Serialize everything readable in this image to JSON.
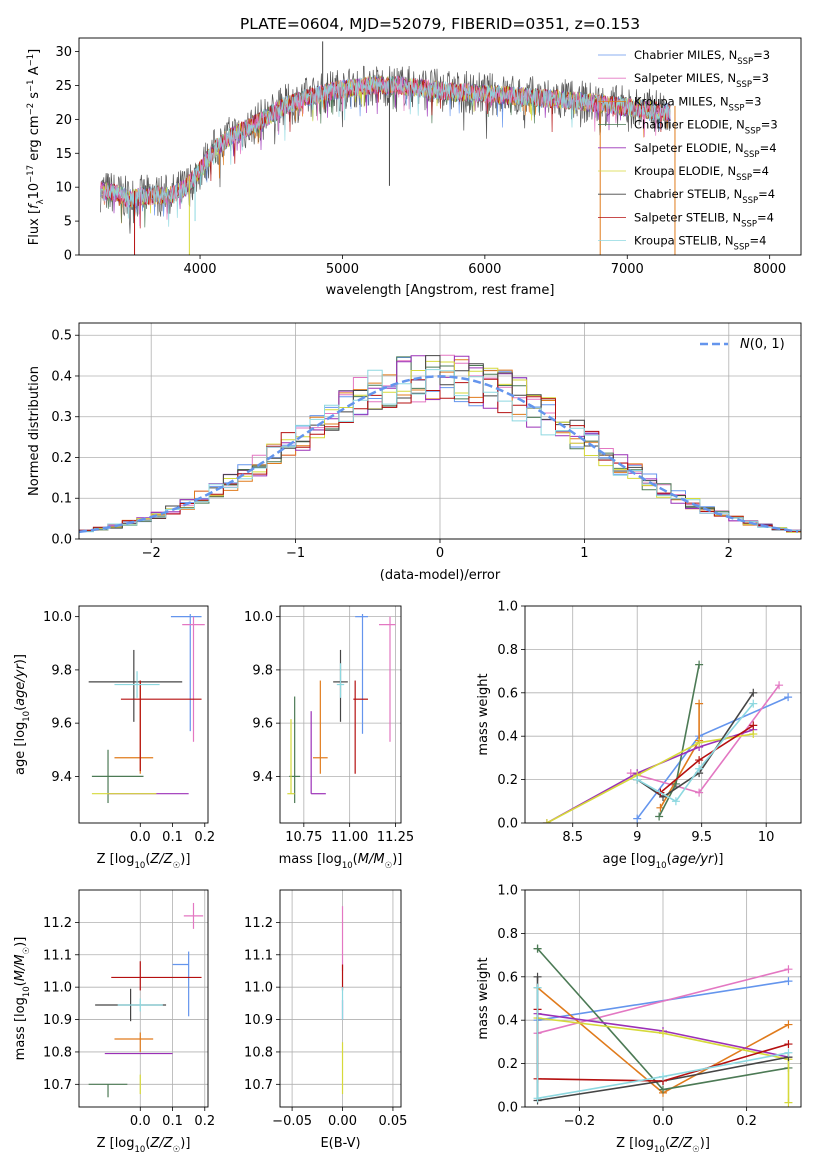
{
  "title": "PLATE=0604, MJD=52079, FIBERID=0351, z=0.153",
  "colors": {
    "Chabrier MILES": "#6495ed",
    "Salpeter MILES": "#e377c2",
    "Kroupa MILES": "#e07b1c",
    "Chabrier ELODIE": "#4c7a55",
    "Salpeter ELODIE": "#9b30b7",
    "Kroupa ELODIE": "#d6d93a",
    "Chabrier STELIB": "#454545",
    "Salpeter STELIB": "#b51010",
    "Kroupa STELIB": "#8dd8e0"
  },
  "legend_spectrum": [
    "Chabrier MILES, N$_{SSP}$=3",
    "Salpeter MILES, N$_{SSP}$=3",
    "Kroupa MILES, N$_{SSP}$=3",
    "Chabrier ELODIE, N$_{SSP}$=3",
    "Salpeter ELODIE, N$_{SSP}$=4",
    "Kroupa ELODIE, N$_{SSP}$=4",
    "Chabrier STELIB, N$_{SSP}$=4",
    "Salpeter STELIB, N$_{SSP}$=4",
    "Kroupa STELIB, N$_{SSP}$=4"
  ],
  "legend_hist": "N(0,1)",
  "chart_data": [
    {
      "id": "spectrum",
      "type": "line",
      "xlabel": "wavelength [Angstrom, rest frame]",
      "ylabel": "Flux [f_λ 10^-17 erg cm^-2 s^-1 A^-1]",
      "xlim": [
        3150,
        8220
      ],
      "ylim": [
        0,
        32
      ],
      "xticks": [
        4000,
        5000,
        6000,
        7000,
        8000
      ],
      "yticks": [
        0,
        5,
        10,
        15,
        20,
        25,
        30
      ],
      "grid": false,
      "legend_position": "right",
      "continuum": {
        "x": [
          3300,
          3400,
          3500,
          3600,
          3700,
          3800,
          3900,
          4000,
          4100,
          4200,
          4400,
          4600,
          4800,
          5000,
          5200,
          5400,
          5600,
          5800,
          6000,
          6300,
          6600,
          7000,
          7300
        ],
        "y": [
          9.5,
          9.2,
          8.3,
          8.7,
          8.8,
          8.8,
          10.0,
          12.5,
          15.5,
          17.3,
          19.5,
          22.0,
          23.5,
          24.5,
          25.0,
          25.0,
          24.5,
          24.0,
          23.8,
          23.3,
          22.8,
          21.8,
          21.0
        ]
      },
      "features": [
        {
          "x": 3540,
          "y": 0
        },
        {
          "x": 3925,
          "y": 0
        },
        {
          "x": 3965,
          "y": 5.0
        },
        {
          "x": 4861,
          "y": 31.5
        },
        {
          "x": 5330,
          "y": 10.2
        },
        {
          "x": 6810,
          "y": 0
        },
        {
          "x": 7335,
          "y": 0
        }
      ]
    },
    {
      "id": "residual_histogram",
      "type": "histogram",
      "xlabel": "(data-model)/error",
      "ylabel": "Normed distribution",
      "xlim": [
        -2.5,
        2.5
      ],
      "ylim": [
        0,
        0.53
      ],
      "xticks": [
        -2,
        -1,
        0,
        1,
        2
      ],
      "yticks": [
        0.0,
        0.1,
        0.2,
        0.3,
        0.4,
        0.5
      ],
      "grid": true,
      "legend_position": "top-right",
      "bin_width": 0.1,
      "reference": {
        "type": "normal",
        "mean": 0,
        "sigma": 1
      }
    },
    {
      "id": "age_vs_Z",
      "type": "errorbar",
      "xlabel": "Z [log10(Z/Z☉)]",
      "ylabel": "age [log10(age/yr)]",
      "xlim": [
        -0.19,
        0.21
      ],
      "ylim": [
        9.225,
        10.04
      ],
      "xticks": [
        -0.0,
        0.1,
        0.2
      ],
      "xticklabels": [
        "0.0",
        "0.1",
        "0.2"
      ],
      "yticks": [
        9.4,
        9.6,
        9.8,
        10.0
      ],
      "grid": false,
      "points": [
        {
          "model": "Chabrier MILES",
          "x": 0.155,
          "y": 10.0,
          "xerr": [
            0.06,
            0.035
          ],
          "yerr": [
            0.43,
            0.01
          ]
        },
        {
          "model": "Salpeter MILES",
          "x": 0.165,
          "y": 9.97,
          "xerr": [
            0.035,
            0.035
          ],
          "yerr": [
            0.44,
            0.03
          ]
        },
        {
          "model": "Kroupa MILES",
          "x": 0.0,
          "y": 9.47,
          "xerr": [
            0.08,
            0.04
          ],
          "yerr": [
            0.06,
            0.29
          ]
        },
        {
          "model": "Chabrier ELODIE",
          "x": -0.1,
          "y": 9.4,
          "xerr": [
            0.05,
            0.11
          ],
          "yerr": [
            0.1,
            0.1
          ]
        },
        {
          "model": "Salpeter ELODIE",
          "x": 0.0,
          "y": 9.335,
          "xerr": [
            0.1,
            0.15
          ],
          "yerr": [
            0.0,
            0.0
          ]
        },
        {
          "model": "Kroupa ELODIE",
          "x": -0.05,
          "y": 9.335,
          "xerr": [
            0.1,
            0.1
          ],
          "yerr": [
            0.0,
            0.0
          ]
        },
        {
          "model": "Chabrier STELIB",
          "x": -0.02,
          "y": 9.755,
          "xerr": [
            0.14,
            0.15
          ],
          "yerr": [
            0.15,
            0.12
          ]
        },
        {
          "model": "Salpeter STELIB",
          "x": 0.0,
          "y": 9.69,
          "xerr": [
            0.06,
            0.19
          ],
          "yerr": [
            0.27,
            0.07
          ]
        },
        {
          "model": "Kroupa STELIB",
          "x": -0.01,
          "y": 9.745,
          "xerr": [
            0.07,
            0.07
          ],
          "yerr": [
            0.05,
            0.05
          ]
        }
      ]
    },
    {
      "id": "age_vs_mass",
      "type": "errorbar",
      "xlabel": "mass [log10(M/M☉)]",
      "xlim": [
        10.62,
        11.28
      ],
      "ylim": [
        9.225,
        10.04
      ],
      "xticks": [
        10.75,
        11.0,
        11.25
      ],
      "xticklabels": [
        "10.75",
        "11.00",
        "11.25"
      ],
      "yticks": [
        9.4,
        9.6,
        9.8,
        10.0
      ],
      "grid": true,
      "points": [
        {
          "model": "Chabrier MILES",
          "x": 11.07,
          "y": 10.0,
          "xerr": [
            0.04,
            0.03
          ],
          "yerr": [
            0.44,
            0.01
          ]
        },
        {
          "model": "Salpeter MILES",
          "x": 11.22,
          "y": 9.97,
          "xerr": [
            0.06,
            0.03
          ],
          "yerr": [
            0.44,
            0.03
          ]
        },
        {
          "model": "Kroupa MILES",
          "x": 10.84,
          "y": 9.47,
          "xerr": [
            0.04,
            0.04
          ],
          "yerr": [
            0.06,
            0.29
          ]
        },
        {
          "model": "Chabrier ELODIE",
          "x": 10.7,
          "y": 9.4,
          "xerr": [
            0.03,
            0.03
          ],
          "yerr": [
            0.1,
            0.3
          ]
        },
        {
          "model": "Salpeter ELODIE",
          "x": 10.79,
          "y": 9.335,
          "xerr": [
            0.0,
            0.08
          ],
          "yerr": [
            0.0,
            0.31
          ]
        },
        {
          "model": "Kroupa ELODIE",
          "x": 10.68,
          "y": 9.335,
          "xerr": [
            0.02,
            0.02
          ],
          "yerr": [
            0.0,
            0.28
          ]
        },
        {
          "model": "Chabrier STELIB",
          "x": 10.95,
          "y": 9.755,
          "xerr": [
            0.04,
            0.04
          ],
          "yerr": [
            0.15,
            0.12
          ]
        },
        {
          "model": "Salpeter STELIB",
          "x": 11.03,
          "y": 9.69,
          "xerr": [
            0.01,
            0.07
          ],
          "yerr": [
            0.28,
            0.07
          ]
        },
        {
          "model": "Kroupa STELIB",
          "x": 10.95,
          "y": 9.745,
          "xerr": [
            0.02,
            0.02
          ],
          "yerr": [
            0.05,
            0.08
          ]
        }
      ]
    },
    {
      "id": "mass_weight_vs_age",
      "type": "line",
      "xlabel": "age [log10(age/yr)]",
      "ylabel": "mass weight",
      "xlim": [
        8.13,
        10.27
      ],
      "ylim": [
        0,
        1.0
      ],
      "xticks": [
        8.5,
        9.0,
        9.5,
        10.0
      ],
      "yticks": [
        0.0,
        0.2,
        0.4,
        0.6,
        0.8,
        1.0
      ],
      "grid": true,
      "series": [
        {
          "model": "Chabrier MILES",
          "x": [
            9.0,
            9.48,
            10.17
          ],
          "y": [
            0.02,
            0.4,
            0.58
          ]
        },
        {
          "model": "Salpeter MILES",
          "x": [
            8.95,
            9.48,
            10.1
          ],
          "y": [
            0.23,
            0.14,
            0.635
          ]
        },
        {
          "model": "Kroupa MILES",
          "x": [
            9.18,
            9.48,
            9.48
          ],
          "y": [
            0.07,
            0.38,
            0.55
          ]
        },
        {
          "model": "Chabrier ELODIE",
          "x": [
            9.17,
            9.3,
            9.48
          ],
          "y": [
            0.03,
            0.18,
            0.73
          ]
        },
        {
          "model": "Salpeter ELODIE",
          "x": [
            8.3,
            9.0,
            9.48,
            9.9
          ],
          "y": [
            0.0,
            0.23,
            0.35,
            0.43
          ]
        },
        {
          "model": "Kroupa ELODIE",
          "x": [
            8.3,
            9.0,
            9.48,
            9.9
          ],
          "y": [
            0.0,
            0.22,
            0.37,
            0.41
          ]
        },
        {
          "model": "Chabrier STELIB",
          "x": [
            9.0,
            9.2,
            9.48,
            9.9
          ],
          "y": [
            0.2,
            0.12,
            0.23,
            0.6
          ]
        },
        {
          "model": "Salpeter STELIB",
          "x": [
            9.18,
            9.48,
            9.9
          ],
          "y": [
            0.14,
            0.29,
            0.45
          ]
        },
        {
          "model": "Kroupa STELIB",
          "x": [
            9.0,
            9.3,
            9.48,
            9.9
          ],
          "y": [
            0.2,
            0.1,
            0.25,
            0.55
          ]
        }
      ]
    },
    {
      "id": "mass_vs_Z",
      "type": "errorbar",
      "xlabel": "Z [log10(Z/Z☉)]",
      "ylabel": "mass [log10(M/M☉)]",
      "xlim": [
        -0.19,
        0.21
      ],
      "ylim": [
        10.63,
        11.3
      ],
      "xticks": [
        -0.0,
        0.1,
        0.2
      ],
      "xticklabels": [
        "0.0",
        "0.1",
        "0.2"
      ],
      "yticks": [
        10.7,
        10.8,
        10.9,
        11.0,
        11.1,
        11.2
      ],
      "grid": true,
      "points": [
        {
          "model": "Chabrier MILES",
          "x": 0.15,
          "y": 11.07,
          "xerr": [
            0.05,
            0.0
          ],
          "yerr": [
            0.16,
            0.04
          ]
        },
        {
          "model": "Salpeter MILES",
          "x": 0.165,
          "y": 11.22,
          "xerr": [
            0.03,
            0.03
          ],
          "yerr": [
            0.04,
            0.04
          ]
        },
        {
          "model": "Kroupa MILES",
          "x": 0.0,
          "y": 10.84,
          "xerr": [
            0.08,
            0.04
          ],
          "yerr": [
            0.04,
            0.02
          ]
        },
        {
          "model": "Chabrier ELODIE",
          "x": -0.1,
          "y": 10.7,
          "xerr": [
            0.06,
            0.06
          ],
          "yerr": [
            0.04,
            0.0
          ]
        },
        {
          "model": "Salpeter ELODIE",
          "x": 0.0,
          "y": 10.795,
          "xerr": [
            0.11,
            0.1
          ],
          "yerr": [
            0.0,
            0.0
          ]
        },
        {
          "model": "Kroupa ELODIE",
          "x": 0.0,
          "y": 10.7,
          "xerr": [
            0.0,
            0.0
          ],
          "yerr": [
            0.03,
            0.03
          ]
        },
        {
          "model": "Chabrier STELIB",
          "x": -0.03,
          "y": 10.945,
          "xerr": [
            0.11,
            0.11
          ],
          "yerr": [
            0.05,
            0.05
          ]
        },
        {
          "model": "Salpeter STELIB",
          "x": 0.0,
          "y": 11.03,
          "xerr": [
            0.09,
            0.19
          ],
          "yerr": [
            0.04,
            0.05
          ]
        },
        {
          "model": "Kroupa STELIB",
          "x": 0.0,
          "y": 10.945,
          "xerr": [
            0.07,
            0.07
          ],
          "yerr": [
            0.02,
            0.02
          ]
        }
      ]
    },
    {
      "id": "mass_vs_EBV",
      "type": "errorbar",
      "xlabel": "E(B-V)",
      "xlim": [
        -0.062,
        0.058
      ],
      "ylim": [
        10.63,
        11.3
      ],
      "xticks": [
        -0.05,
        0.0,
        0.05
      ],
      "xticklabels": [
        "−0.05",
        "0.00",
        "0.05"
      ],
      "yticks": [
        10.7,
        10.8,
        10.9,
        11.0,
        11.1,
        11.2
      ],
      "grid": true,
      "points": [
        {
          "model": "Salpeter MILES",
          "x": 0.0,
          "y": 11.15,
          "xerr": [
            0.0,
            0.0
          ],
          "yerr": [
            0.1,
            0.1
          ]
        },
        {
          "model": "Salpeter STELIB",
          "x": 0.0,
          "y": 11.03,
          "xerr": [
            0.0,
            0.0
          ],
          "yerr": [
            0.04,
            0.04
          ]
        },
        {
          "model": "Salpeter ELODIE",
          "x": 0.0,
          "y": 10.93,
          "xerr": [
            0.0,
            0.0
          ],
          "yerr": [
            0.03,
            0.03
          ]
        },
        {
          "model": "Kroupa ELODIE",
          "x": 0.0,
          "y": 10.75,
          "xerr": [
            0.0,
            0.0
          ],
          "yerr": [
            0.08,
            0.08
          ]
        },
        {
          "model": "Kroupa STELIB",
          "x": 0.0,
          "y": 10.95,
          "xerr": [
            0.0,
            0.0
          ],
          "yerr": [
            0.05,
            0.05
          ]
        }
      ]
    },
    {
      "id": "mass_weight_vs_Z",
      "type": "line",
      "xlabel": "Z [log10(Z/Z☉)]",
      "ylabel": "mass weight",
      "xlim": [
        -0.33,
        0.33
      ],
      "ylim": [
        0,
        1.0
      ],
      "xticks": [
        -0.2,
        0.0,
        0.2
      ],
      "xticklabels": [
        "−0.2",
        "0.0",
        "0.2"
      ],
      "yticks": [
        0.0,
        0.2,
        0.4,
        0.6,
        0.8,
        1.0
      ],
      "grid": true,
      "series": [
        {
          "model": "Chabrier MILES",
          "x": [
            -0.3,
            0.3
          ],
          "y": [
            0.4,
            0.58
          ]
        },
        {
          "model": "Salpeter MILES",
          "x": [
            -0.3,
            0.3
          ],
          "y": [
            0.34,
            0.635
          ]
        },
        {
          "model": "Kroupa MILES",
          "x": [
            -0.3,
            0.0,
            0.3
          ],
          "y": [
            0.55,
            0.065,
            0.38
          ]
        },
        {
          "model": "Chabrier ELODIE",
          "x": [
            -0.3,
            -0.3,
            0.0,
            0.3
          ],
          "y": [
            0.73,
            0.73,
            0.08,
            0.18
          ]
        },
        {
          "model": "Salpeter ELODIE",
          "x": [
            -0.3,
            0.0,
            0.3
          ],
          "y": [
            0.43,
            0.35,
            0.23
          ]
        },
        {
          "model": "Kroupa ELODIE",
          "x": [
            -0.3,
            0.0,
            0.3,
            0.3
          ],
          "y": [
            0.41,
            0.34,
            0.22,
            0.02
          ]
        },
        {
          "model": "Chabrier STELIB",
          "x": [
            -0.3,
            -0.3,
            0.0,
            0.3
          ],
          "y": [
            0.6,
            0.03,
            0.12,
            0.23
          ]
        },
        {
          "model": "Salpeter STELIB",
          "x": [
            -0.3,
            -0.3,
            0.0,
            0.3
          ],
          "y": [
            0.45,
            0.13,
            0.12,
            0.29
          ]
        },
        {
          "model": "Kroupa STELIB",
          "x": [
            -0.3,
            -0.3,
            0.0,
            0.3
          ],
          "y": [
            0.55,
            0.04,
            0.14,
            0.25
          ]
        }
      ]
    }
  ]
}
